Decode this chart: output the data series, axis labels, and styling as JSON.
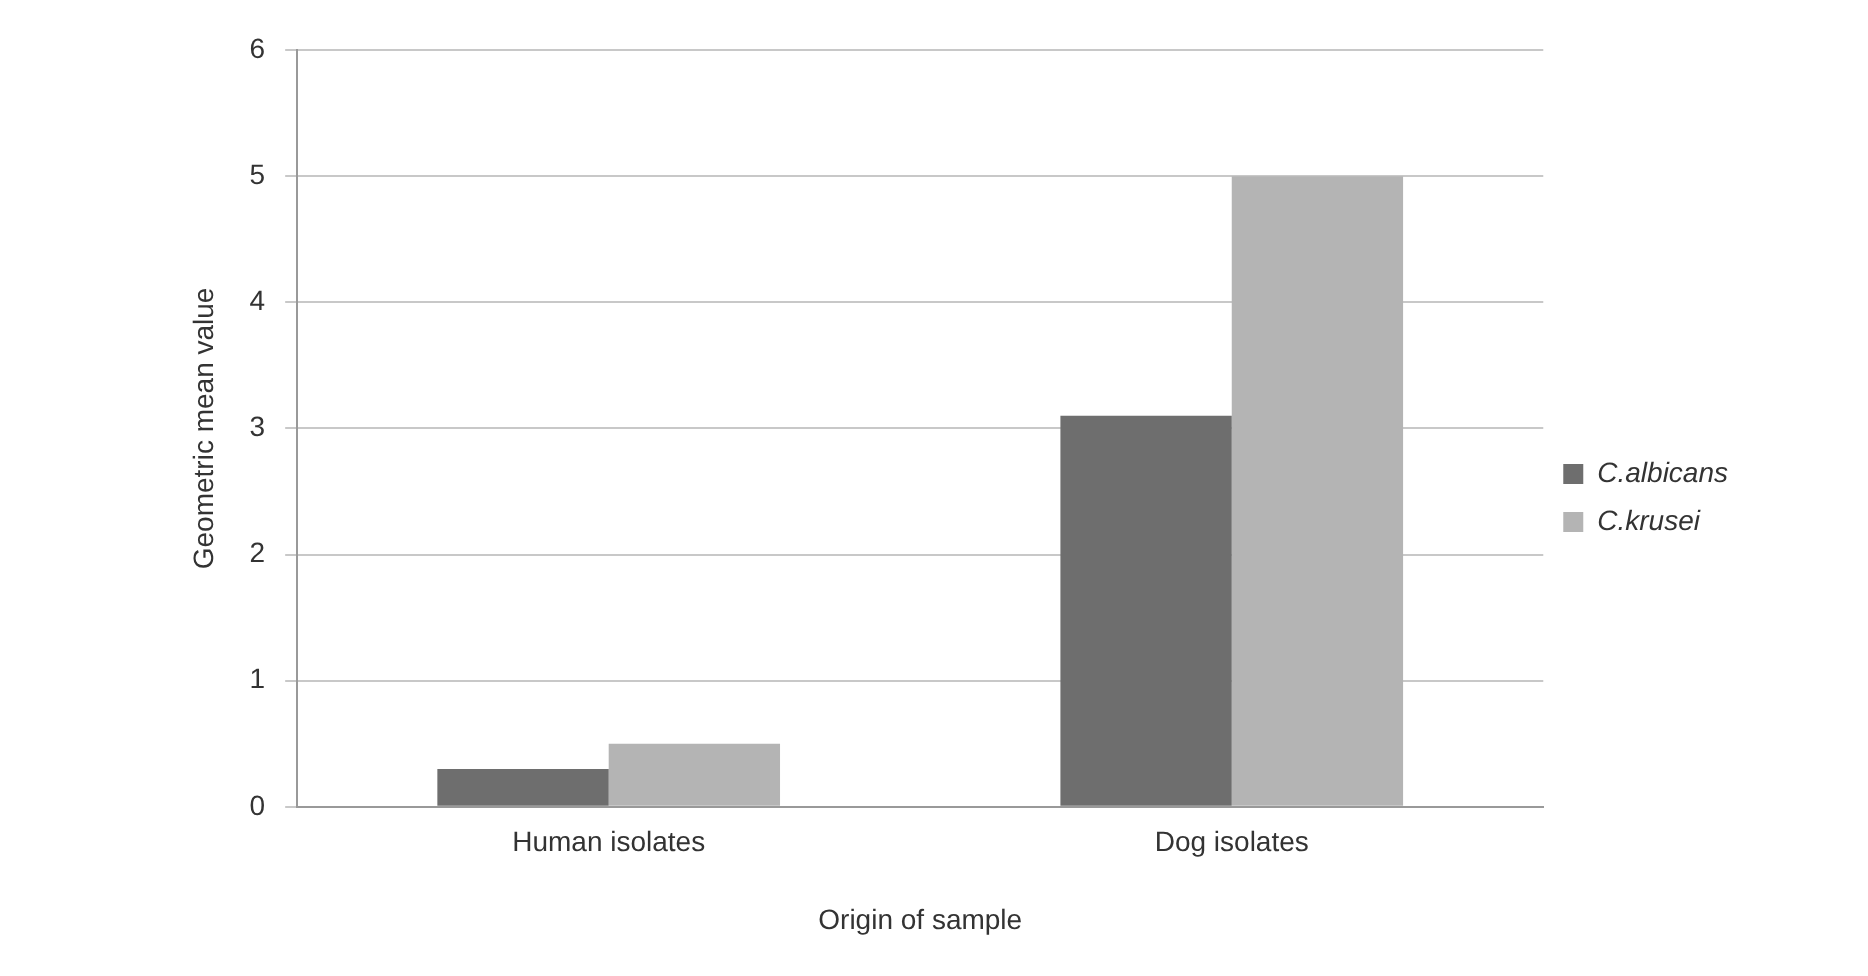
{
  "chart_data": {
    "type": "bar",
    "xlabel": "Origin of sample",
    "ylabel": "Geometric mean value",
    "categories": [
      "Human isolates",
      "Dog isolates"
    ],
    "series": [
      {
        "name": "C.albicans",
        "color": "#6e6e6e",
        "values": [
          0.3,
          3.1
        ]
      },
      {
        "name": "C.krusei",
        "color": "#b4b4b4",
        "values": [
          0.5,
          5.0
        ]
      }
    ],
    "ylim": [
      0,
      6
    ],
    "yticks": [
      0,
      1,
      2,
      3,
      4,
      5,
      6
    ],
    "grid": "y",
    "legend": "right"
  }
}
